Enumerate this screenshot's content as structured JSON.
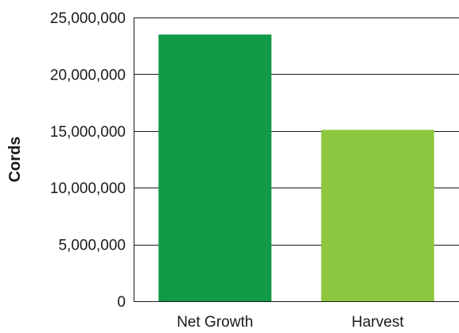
{
  "chart_data": {
    "type": "bar",
    "categories": [
      "Net Growth",
      "Harvest"
    ],
    "values": [
      23500000,
      15100000
    ],
    "colors": [
      "#119a47",
      "#8dc63f"
    ],
    "title": "",
    "xlabel": "",
    "ylabel": "Cords",
    "ylim": [
      0,
      25000000
    ],
    "yticks": [
      0,
      5000000,
      10000000,
      15000000,
      20000000,
      25000000
    ],
    "ytick_labels": [
      "0",
      "5,000,000",
      "10,000,000",
      "15,000,000",
      "20,000,000",
      "25,000,000"
    ],
    "grid": true
  }
}
